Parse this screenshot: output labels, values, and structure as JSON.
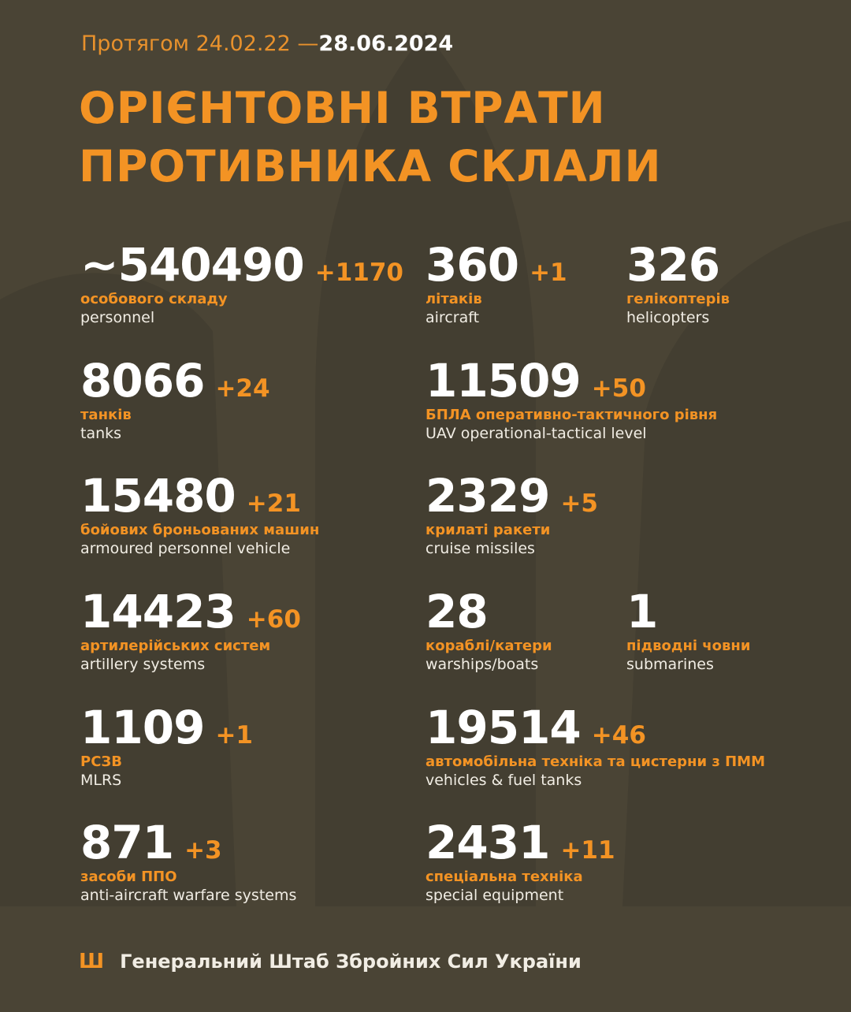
{
  "period": {
    "prefix": "Протягом 24.02.22 —",
    "date": "28.06.2024"
  },
  "title": {
    "line1": "ОРІЄНТОВНІ ВТРАТИ",
    "line2": "ПРОТИВНИКА СКЛАЛИ"
  },
  "items": [
    {
      "value": "~540490",
      "increase": "+1170",
      "label_ua": "особового складу",
      "label_en": "personnel"
    },
    {
      "value": "360",
      "increase": "+1",
      "label_ua": "літаків",
      "label_en": "aircraft"
    },
    {
      "value": "326",
      "increase": "",
      "label_ua": "гелікоптерів",
      "label_en": "helicopters"
    },
    {
      "value": "8066",
      "increase": "+24",
      "label_ua": "танків",
      "label_en": "tanks"
    },
    {
      "value": "11509",
      "increase": "+50",
      "label_ua": "БПЛА оперативно-тактичного рівня",
      "label_en": "UAV operational-tactical level"
    },
    {
      "value": "15480",
      "increase": "+21",
      "label_ua": "бойових броньованих машин",
      "label_en": "armoured personnel vehicle"
    },
    {
      "value": "2329",
      "increase": "+5",
      "label_ua": "крилаті ракети",
      "label_en": "cruise missiles"
    },
    {
      "value": "14423",
      "increase": "+60",
      "label_ua": "артилерійських систем",
      "label_en": "artillery systems"
    },
    {
      "value": "28",
      "increase": "",
      "label_ua": "кораблі/катери",
      "label_en": "warships/boats"
    },
    {
      "value": "1",
      "increase": "",
      "label_ua": "підводні човни",
      "label_en": "submarines"
    },
    {
      "value": "1109",
      "increase": "+1",
      "label_ua": "РСЗВ",
      "label_en": "MLRS"
    },
    {
      "value": "19514",
      "increase": "+46",
      "label_ua": "автомобільна техніка та цистерни з ПММ",
      "label_en": "vehicles & fuel tanks"
    },
    {
      "value": "871",
      "increase": "+3",
      "label_ua": "засоби ППО",
      "label_en": "anti-aircraft warfare systems"
    },
    {
      "value": "2431",
      "increase": "+11",
      "label_ua": "спеціальна техніка",
      "label_en": "special equipment"
    }
  ],
  "footer": {
    "icon": "tryzub-icon",
    "text": "Генеральний Штаб Збройних Сил України"
  },
  "colors": {
    "background": "#4a4435",
    "accent": "#f39324",
    "text": "#ffffff"
  }
}
